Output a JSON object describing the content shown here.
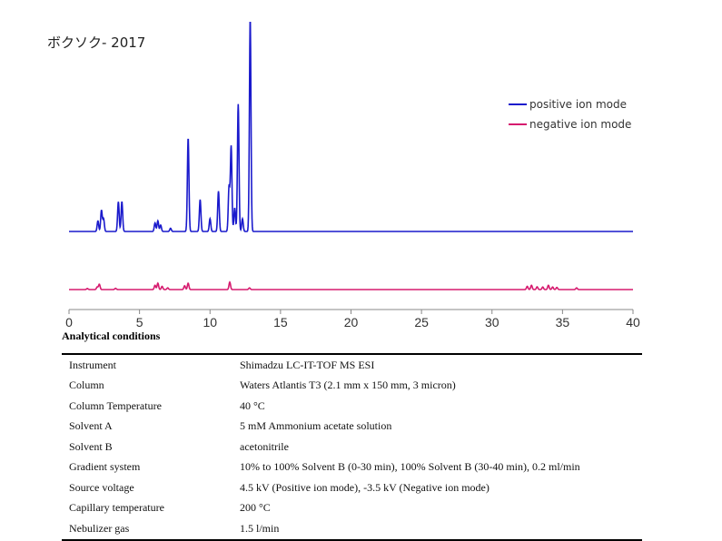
{
  "title": "ボクソク- 2017",
  "chart_data": {
    "type": "line",
    "xlim": [
      0,
      40
    ],
    "x_ticks": [
      0,
      5,
      10,
      15,
      20,
      25,
      30,
      35,
      40
    ],
    "xlabel": "",
    "ylabel": "",
    "grid": false,
    "legend_position": "top-right",
    "series": [
      {
        "name": "positive ion mode",
        "color": "#1a1acc",
        "baseline_level": 0.0,
        "peaks": [
          {
            "x": 2.05,
            "h": 0.05
          },
          {
            "x": 2.3,
            "h": 0.1
          },
          {
            "x": 2.45,
            "h": 0.06
          },
          {
            "x": 3.5,
            "h": 0.14
          },
          {
            "x": 3.75,
            "h": 0.14
          },
          {
            "x": 6.1,
            "h": 0.04
          },
          {
            "x": 6.3,
            "h": 0.05
          },
          {
            "x": 6.5,
            "h": 0.03
          },
          {
            "x": 7.2,
            "h": 0.015
          },
          {
            "x": 8.45,
            "h": 0.44
          },
          {
            "x": 9.3,
            "h": 0.15
          },
          {
            "x": 10.0,
            "h": 0.06
          },
          {
            "x": 10.6,
            "h": 0.19
          },
          {
            "x": 11.35,
            "h": 0.21
          },
          {
            "x": 11.5,
            "h": 0.4
          },
          {
            "x": 11.75,
            "h": 0.11
          },
          {
            "x": 12.0,
            "h": 0.6
          },
          {
            "x": 12.3,
            "h": 0.06
          },
          {
            "x": 12.85,
            "h": 1.0
          }
        ]
      },
      {
        "name": "negative ion mode",
        "color": "#d61a6e",
        "baseline_level": 0.0,
        "peaks": [
          {
            "x": 1.3,
            "h": 0.005
          },
          {
            "x": 2.0,
            "h": 0.012
          },
          {
            "x": 2.15,
            "h": 0.025
          },
          {
            "x": 3.3,
            "h": 0.006
          },
          {
            "x": 6.1,
            "h": 0.02
          },
          {
            "x": 6.3,
            "h": 0.03
          },
          {
            "x": 6.6,
            "h": 0.015
          },
          {
            "x": 7.0,
            "h": 0.008
          },
          {
            "x": 8.2,
            "h": 0.018
          },
          {
            "x": 8.45,
            "h": 0.03
          },
          {
            "x": 11.4,
            "h": 0.035
          },
          {
            "x": 12.8,
            "h": 0.008
          },
          {
            "x": 32.5,
            "h": 0.015
          },
          {
            "x": 32.8,
            "h": 0.02
          },
          {
            "x": 33.2,
            "h": 0.013
          },
          {
            "x": 33.6,
            "h": 0.012
          },
          {
            "x": 34.0,
            "h": 0.02
          },
          {
            "x": 34.3,
            "h": 0.012
          },
          {
            "x": 34.6,
            "h": 0.01
          },
          {
            "x": 36.0,
            "h": 0.008
          }
        ]
      }
    ]
  },
  "conditions": {
    "heading": "Analytical conditions",
    "rows": [
      {
        "label": "Instrument",
        "value": "Shimadzu LC-IT-TOF MS ESI"
      },
      {
        "label": "Column",
        "value": "Waters Atlantis T3 (2.1 mm x 150 mm, 3 micron)"
      },
      {
        "label": "Column Temperature",
        "value": "40 °C"
      },
      {
        "label": "Solvent A",
        "value": "5 mM Ammonium acetate solution"
      },
      {
        "label": "Solvent B",
        "value": "acetonitrile"
      },
      {
        "label": "Gradient system",
        "value": "10% to 100% Solvent B (0-30 min), 100% Solvent B (30-40 min), 0.2 ml/min"
      },
      {
        "label": "Source voltage",
        "value": "4.5 kV (Positive ion mode), -3.5 kV (Negative ion mode)"
      },
      {
        "label": "Capillary temperature",
        "value": "200 °C"
      },
      {
        "label": "Nebulizer gas",
        "value": "1.5 l/min"
      }
    ]
  }
}
